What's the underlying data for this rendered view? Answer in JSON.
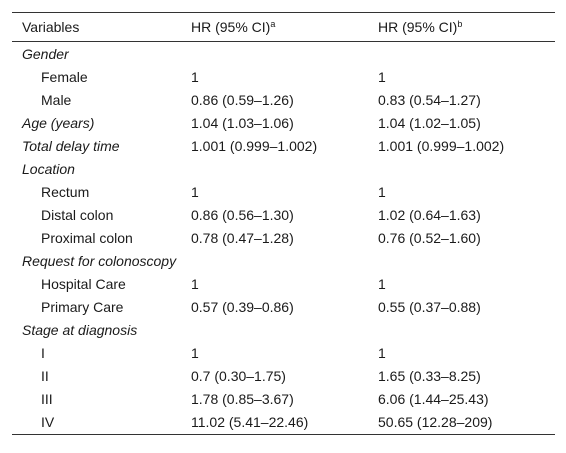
{
  "header": {
    "col_variables": "Variables",
    "col_hr_a": "HR (95% CI)",
    "col_hr_a_sup": "a",
    "col_hr_b": "HR (95% CI)",
    "col_hr_b_sup": "b"
  },
  "rows": [
    {
      "type": "group",
      "label": "Gender",
      "a": "",
      "b": ""
    },
    {
      "type": "sub",
      "label": "Female",
      "a": "1",
      "b": "1"
    },
    {
      "type": "sub",
      "label": "Male",
      "a": "0.86 (0.59–1.26)",
      "b": "0.83 (0.54–1.27)"
    },
    {
      "type": "var",
      "label": "Age (years)",
      "a": "1.04 (1.03–1.06)",
      "b": "1.04 (1.02–1.05)"
    },
    {
      "type": "var",
      "label": "Total delay time",
      "a": "1.001 (0.999–1.002)",
      "b": "1.001 (0.999–1.002)"
    },
    {
      "type": "group",
      "label": "Location",
      "a": "",
      "b": ""
    },
    {
      "type": "sub",
      "label": "Rectum",
      "a": "1",
      "b": "1"
    },
    {
      "type": "sub",
      "label": "Distal colon",
      "a": "0.86 (0.56–1.30)",
      "b": "1.02 (0.64–1.63)"
    },
    {
      "type": "sub",
      "label": "Proximal colon",
      "a": "0.78 (0.47–1.28)",
      "b": "0.76 (0.52–1.60)"
    },
    {
      "type": "group",
      "label": "Request for colonoscopy",
      "a": "",
      "b": ""
    },
    {
      "type": "sub",
      "label": "Hospital Care",
      "a": "1",
      "b": "1"
    },
    {
      "type": "sub",
      "label": "Primary Care",
      "a": "0.57 (0.39–0.86)",
      "b": "0.55 (0.37–0.88)"
    },
    {
      "type": "group",
      "label": "Stage at diagnosis",
      "a": "",
      "b": ""
    },
    {
      "type": "sub",
      "label": "I",
      "a": "1",
      "b": "1"
    },
    {
      "type": "sub",
      "label": "II",
      "a": "0.7 (0.30–1.75)",
      "b": "1.65 (0.33–8.25)"
    },
    {
      "type": "sub",
      "label": "III",
      "a": "1.78 (0.85–3.67)",
      "b": "6.06 (1.44–25.43)"
    },
    {
      "type": "sub",
      "label": "IV",
      "a": "11.02 (5.41–22.46)",
      "b": "50.65 (12.28–209)"
    }
  ]
}
